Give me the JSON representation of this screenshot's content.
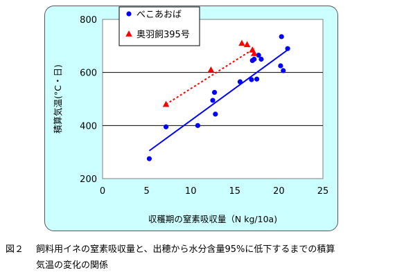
{
  "chart_data": {
    "type": "scatter",
    "xlabel": "収穫期の窒素吸収量（N kg/10a)",
    "ylabel": "積算気温(°C・日)",
    "xlim": [
      0,
      25
    ],
    "ylim": [
      200,
      800
    ],
    "xticks": [
      "0",
      "5",
      "10",
      "15",
      "20",
      "25"
    ],
    "yticks": [
      "200",
      "400",
      "600",
      "800"
    ],
    "grid": "horizontal",
    "legend_position": "top-left",
    "series": [
      {
        "name": "べこあおば",
        "marker": "circle",
        "color": "#0000ff",
        "points": [
          [
            5.3,
            275
          ],
          [
            7.2,
            395
          ],
          [
            10.8,
            400
          ],
          [
            12.5,
            495
          ],
          [
            12.7,
            525
          ],
          [
            12.8,
            443
          ],
          [
            15.6,
            565
          ],
          [
            16.9,
            573
          ],
          [
            17.0,
            645
          ],
          [
            17.2,
            650
          ],
          [
            17.5,
            575
          ],
          [
            17.7,
            665
          ],
          [
            18.0,
            650
          ],
          [
            20.2,
            625
          ],
          [
            20.3,
            735
          ],
          [
            20.5,
            607
          ],
          [
            21.0,
            690
          ]
        ],
        "trendline": {
          "style": "solid",
          "x": [
            5.3,
            21.0
          ],
          "y": [
            305,
            685
          ]
        }
      },
      {
        "name": "奥羽飼395号",
        "marker": "triangle",
        "color": "#ff0000",
        "points": [
          [
            7.2,
            480
          ],
          [
            12.3,
            610
          ],
          [
            15.8,
            710
          ],
          [
            16.4,
            705
          ],
          [
            17.0,
            685
          ],
          [
            17.2,
            672
          ]
        ],
        "trendline": {
          "style": "dotted",
          "x": [
            7.2,
            17.2
          ],
          "y": [
            480,
            690
          ]
        }
      }
    ]
  },
  "caption": {
    "label": "図２",
    "line1": "飼料用イネの窒素吸収量と、出穂から水分含量95%に低下するまでの積算",
    "line2": "気温の変化の関係"
  }
}
